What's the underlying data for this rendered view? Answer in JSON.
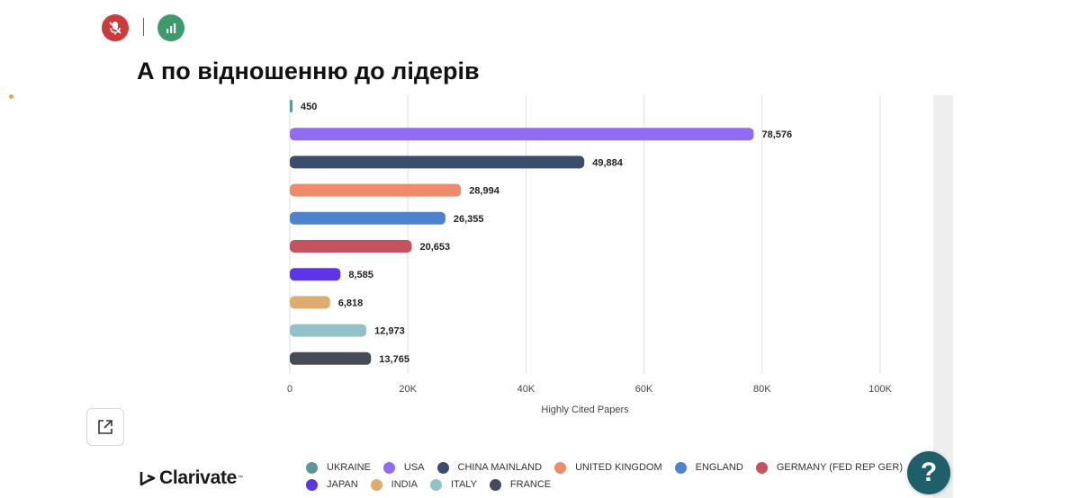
{
  "header": {
    "title": "А по відношенню до лідерів"
  },
  "icons": {
    "mic": "mic-off-icon",
    "stats": "stats-icon"
  },
  "logo": {
    "text": "Clarivate",
    "tm": "™"
  },
  "help": {
    "label": "?"
  },
  "colors": {
    "ukraine": "#5c97a0",
    "usa": "#8f6cf0",
    "china": "#3e4c6c",
    "uk": "#ef8a6a",
    "england": "#4d83cb",
    "germany": "#c4525f",
    "japan": "#5e35e6",
    "india": "#deac6e",
    "italy": "#93c1c8",
    "france": "#464b58"
  },
  "chart_data": {
    "type": "bar",
    "orientation": "horizontal",
    "xlabel": "Highly Cited Papers",
    "ylabel": "",
    "xlim": [
      0,
      100000
    ],
    "xticks": [
      0,
      20000,
      40000,
      60000,
      80000,
      100000
    ],
    "xtick_labels": [
      "0",
      "20K",
      "40K",
      "60K",
      "80K",
      "100K"
    ],
    "categories": [
      "UKRAINE",
      "USA",
      "CHINA MAINLAND",
      "UNITED KINGDOM",
      "ENGLAND",
      "GERMANY (FED REP GER)",
      "JAPAN",
      "INDIA",
      "ITALY",
      "FRANCE"
    ],
    "values": [
      450,
      78576,
      49884,
      28994,
      26355,
      20653,
      8585,
      6818,
      12973,
      13765
    ],
    "value_labels": [
      "450",
      "78,576",
      "49,884",
      "28,994",
      "26,355",
      "20,653",
      "8,585",
      "6,818",
      "12,973",
      "13,765"
    ],
    "legend": [
      {
        "name": "UKRAINE",
        "color_key": "ukraine"
      },
      {
        "name": "USA",
        "color_key": "usa"
      },
      {
        "name": "CHINA MAINLAND",
        "color_key": "china"
      },
      {
        "name": "UNITED KINGDOM",
        "color_key": "uk"
      },
      {
        "name": "ENGLAND",
        "color_key": "england"
      },
      {
        "name": "GERMANY (FED REP GER)",
        "color_key": "germany"
      },
      {
        "name": "JAPAN",
        "color_key": "japan"
      },
      {
        "name": "INDIA",
        "color_key": "india"
      },
      {
        "name": "ITALY",
        "color_key": "italy"
      },
      {
        "name": "FRANCE",
        "color_key": "france"
      }
    ],
    "legend_position": "bottom"
  }
}
